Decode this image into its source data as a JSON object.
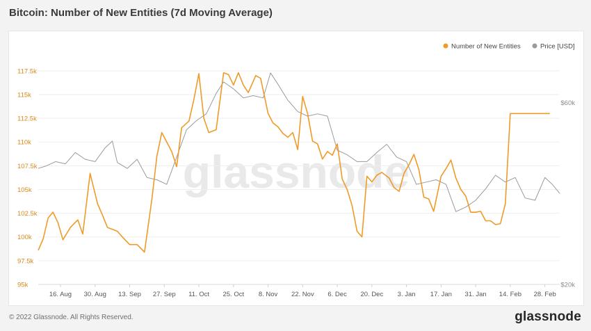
{
  "header": {
    "title": "Bitcoin: Number of New Entities (7d Moving Average)"
  },
  "footer": {
    "copyright": "© 2022 Glassnode. All Rights Reserved.",
    "logo": "glassnode"
  },
  "watermark": "glassnode",
  "colors": {
    "entities": "#f09a28",
    "price": "#9a9a9a",
    "left_axis": "#d58a1c",
    "right_axis": "#8a8a8a",
    "grid": "#eeeeee"
  },
  "chart_data": {
    "type": "line",
    "title": "Bitcoin: Number of New Entities (7d Moving Average)",
    "x_ticks": [
      "16. Aug",
      "30. Aug",
      "13. Sep",
      "27. Sep",
      "11. Oct",
      "25. Oct",
      "8. Nov",
      "22. Nov",
      "6. Dec",
      "20. Dec",
      "3. Jan",
      "17. Jan",
      "31. Jan",
      "14. Feb",
      "28. Feb"
    ],
    "x_range": [
      "2021-08-07",
      "2022-03-06"
    ],
    "y_left": {
      "range": [
        95000,
        118000
      ],
      "ticks": [
        95000,
        97500,
        100000,
        102500,
        105000,
        107500,
        110000,
        112500,
        115000,
        117500
      ],
      "tick_labels": [
        "95k",
        "97.5k",
        "100k",
        "102.5k",
        "105k",
        "107.5k",
        "110k",
        "112.5k",
        "115k",
        "117.5k"
      ]
    },
    "y_right": {
      "range": [
        20000,
        68000
      ],
      "ticks": [
        20000,
        60000
      ],
      "tick_labels": [
        "$20k",
        "$60k"
      ]
    },
    "legend_position": "top-right",
    "series": [
      {
        "name": "Number of New Entities",
        "axis": "left",
        "x": [
          "2021-08-07",
          "2021-08-09",
          "2021-08-11",
          "2021-08-13",
          "2021-08-15",
          "2021-08-17",
          "2021-08-20",
          "2021-08-23",
          "2021-08-25",
          "2021-08-28",
          "2021-08-31",
          "2021-09-02",
          "2021-09-04",
          "2021-09-06",
          "2021-09-08",
          "2021-09-10",
          "2021-09-13",
          "2021-09-16",
          "2021-09-19",
          "2021-09-22",
          "2021-09-24",
          "2021-09-26",
          "2021-09-28",
          "2021-09-30",
          "2021-10-02",
          "2021-10-04",
          "2021-10-07",
          "2021-10-09",
          "2021-10-11",
          "2021-10-13",
          "2021-10-15",
          "2021-10-18",
          "2021-10-21",
          "2021-10-23",
          "2021-10-25",
          "2021-10-27",
          "2021-10-29",
          "2021-10-31",
          "2021-11-03",
          "2021-11-05",
          "2021-11-08",
          "2021-11-10",
          "2021-11-12",
          "2021-11-14",
          "2021-11-16",
          "2021-11-18",
          "2021-11-20",
          "2021-11-22",
          "2021-11-24",
          "2021-11-26",
          "2021-11-28",
          "2021-11-30",
          "2021-12-02",
          "2021-12-04",
          "2021-12-06",
          "2021-12-08",
          "2021-12-10",
          "2021-12-12",
          "2021-12-14",
          "2021-12-16",
          "2021-12-18",
          "2021-12-20",
          "2021-12-22",
          "2021-12-24",
          "2021-12-27",
          "2021-12-29",
          "2021-12-31",
          "2022-01-02",
          "2022-01-04",
          "2022-01-06",
          "2022-01-08",
          "2022-01-10",
          "2022-01-12",
          "2022-01-14",
          "2022-01-17",
          "2022-01-19",
          "2022-01-21",
          "2022-01-23",
          "2022-01-25",
          "2022-01-27",
          "2022-01-29",
          "2022-01-31",
          "2022-02-02",
          "2022-02-04",
          "2022-02-06",
          "2022-02-08",
          "2022-02-10",
          "2022-02-12",
          "2022-02-14",
          "2022-02-16",
          "2022-02-18",
          "2022-02-20",
          "2022-02-22",
          "2022-02-24",
          "2022-02-26",
          "2022-02-28",
          "2022-03-02"
        ],
        "values": [
          98600,
          99800,
          102000,
          102600,
          101500,
          99700,
          101000,
          101800,
          100300,
          106700,
          103500,
          102300,
          101000,
          100800,
          100600,
          100000,
          99200,
          99200,
          98400,
          104000,
          108500,
          111000,
          110000,
          109000,
          107400,
          111500,
          112200,
          114500,
          117200,
          112500,
          111000,
          111300,
          117300,
          117100,
          116000,
          117300,
          116000,
          115200,
          117000,
          116700,
          113000,
          112000,
          111600,
          110900,
          110500,
          111000,
          109200,
          114800,
          113000,
          110100,
          109800,
          108200,
          109000,
          108600,
          109800,
          106100,
          105000,
          103300,
          100600,
          100000,
          106400,
          105800,
          106500,
          106800,
          106200,
          105200,
          104800,
          106700,
          107600,
          108700,
          107100,
          104200,
          104000,
          102700,
          106400,
          107200,
          108100,
          106200,
          105000,
          104300,
          102600,
          102600,
          102700,
          101700,
          101700,
          101300,
          101400,
          103500,
          113000,
          113000,
          113000,
          113000,
          113000,
          113000,
          113000,
          113000,
          113000
        ]
      },
      {
        "name": "Price [USD]",
        "axis": "right",
        "x": [
          "2021-08-07",
          "2021-08-10",
          "2021-08-14",
          "2021-08-18",
          "2021-08-22",
          "2021-08-26",
          "2021-08-30",
          "2021-09-03",
          "2021-09-06",
          "2021-09-08",
          "2021-09-12",
          "2021-09-16",
          "2021-09-20",
          "2021-09-24",
          "2021-09-28",
          "2021-10-02",
          "2021-10-06",
          "2021-10-10",
          "2021-10-14",
          "2021-10-18",
          "2021-10-21",
          "2021-10-25",
          "2021-10-29",
          "2021-11-02",
          "2021-11-06",
          "2021-11-09",
          "2021-11-12",
          "2021-11-16",
          "2021-11-20",
          "2021-11-24",
          "2021-11-28",
          "2021-12-02",
          "2021-12-06",
          "2021-12-10",
          "2021-12-14",
          "2021-12-18",
          "2021-12-22",
          "2021-12-26",
          "2021-12-30",
          "2022-01-03",
          "2022-01-07",
          "2022-01-11",
          "2022-01-15",
          "2022-01-19",
          "2022-01-23",
          "2022-01-27",
          "2022-01-31",
          "2022-02-04",
          "2022-02-08",
          "2022-02-12",
          "2022-02-16",
          "2022-02-20",
          "2022-02-24",
          "2022-02-28",
          "2022-03-03",
          "2022-03-06"
        ],
        "values": [
          45500,
          46000,
          47000,
          46500,
          49000,
          47500,
          47000,
          50000,
          51500,
          46800,
          45500,
          47500,
          43500,
          43000,
          42000,
          48000,
          54000,
          56000,
          57500,
          62000,
          64500,
          63000,
          61000,
          61500,
          61000,
          66500,
          64000,
          60500,
          58000,
          57000,
          57500,
          57000,
          49500,
          48500,
          47000,
          47000,
          49000,
          50800,
          48000,
          47000,
          42000,
          42500,
          43000,
          42000,
          36000,
          37000,
          38500,
          41000,
          44000,
          42500,
          43500,
          39000,
          38500,
          43500,
          42000,
          40000
        ]
      }
    ]
  }
}
